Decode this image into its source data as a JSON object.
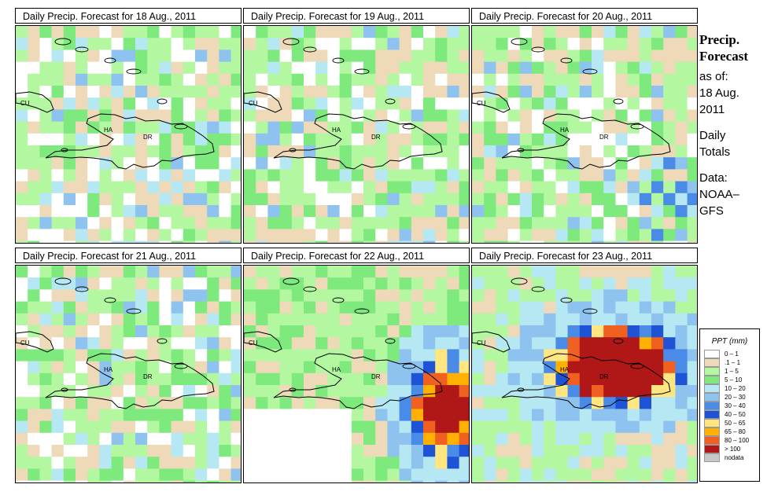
{
  "panels": [
    {
      "title": "Daily Precip. Forecast for  18 Aug., 2011"
    },
    {
      "title": "Daily Precip. Forecast for  19 Aug., 2011"
    },
    {
      "title": "Daily Precip. Forecast for  20 Aug., 2011"
    },
    {
      "title": "Daily Precip. Forecast for  21 Aug., 2011"
    },
    {
      "title": "Daily Precip. Forecast for  22 Aug., 2011"
    },
    {
      "title": "Daily Precip. Forecast for  23 Aug., 2011"
    }
  ],
  "map_labels": {
    "cu": "CU",
    "ha": "HA",
    "dr": "DR"
  },
  "sidebar": {
    "heading_line1": "Precip.",
    "heading_line2": "Forecast",
    "asof_label": "as of:",
    "asof_date1": "18 Aug.",
    "asof_date2": "2011",
    "totals1": "Daily",
    "totals2": "Totals",
    "data1": "Data:",
    "data2": "NOAA–",
    "data3": "GFS"
  },
  "legend": {
    "title": "PPT (mm)",
    "items": [
      {
        "label": "0 – 1",
        "color": "#ffffff"
      },
      {
        "label": ".1 – 1",
        "color": "#eed9b8"
      },
      {
        "label": "1 – 5",
        "color": "#b3f7a1"
      },
      {
        "label": "5 – 10",
        "color": "#7ee97d"
      },
      {
        "label": "10 – 20",
        "color": "#b5e8f3"
      },
      {
        "label": "20 – 30",
        "color": "#8ec3ef"
      },
      {
        "label": "30 – 40",
        "color": "#4a8be8"
      },
      {
        "label": "40 – 50",
        "color": "#1f53d6"
      },
      {
        "label": "50 – 65",
        "color": "#ffe680"
      },
      {
        "label": "65 – 80",
        "color": "#ffb000"
      },
      {
        "label": "80 – 100",
        "color": "#f06020"
      },
      {
        "label": "> 100",
        "color": "#b01818"
      },
      {
        "label": "nodata",
        "color": "#c8c8c8"
      }
    ]
  },
  "scenarios": [
    "dry",
    "dry",
    "dry_blue",
    "dry",
    "storm_se",
    "storm_center"
  ]
}
